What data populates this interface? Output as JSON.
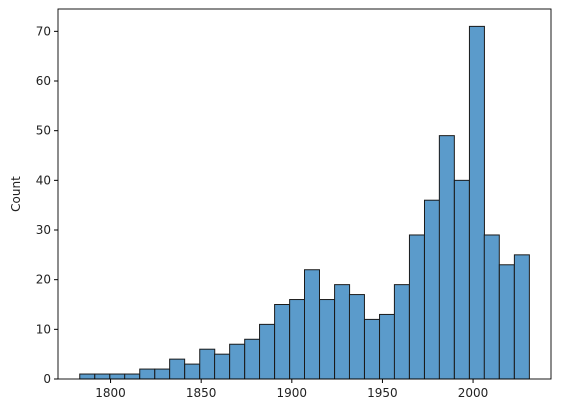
{
  "chart_data": {
    "type": "bar",
    "bin_width": 8.27,
    "bins": [
      {
        "x0": 1783.0,
        "count": 1
      },
      {
        "x0": 1791.3,
        "count": 1
      },
      {
        "x0": 1799.6,
        "count": 1
      },
      {
        "x0": 1807.8,
        "count": 1
      },
      {
        "x0": 1816.1,
        "count": 2
      },
      {
        "x0": 1824.4,
        "count": 2
      },
      {
        "x0": 1832.6,
        "count": 4
      },
      {
        "x0": 1840.9,
        "count": 3
      },
      {
        "x0": 1849.2,
        "count": 6
      },
      {
        "x0": 1857.4,
        "count": 5
      },
      {
        "x0": 1865.7,
        "count": 7
      },
      {
        "x0": 1874.0,
        "count": 8
      },
      {
        "x0": 1882.2,
        "count": 11
      },
      {
        "x0": 1890.5,
        "count": 15
      },
      {
        "x0": 1898.8,
        "count": 16
      },
      {
        "x0": 1907.0,
        "count": 22
      },
      {
        "x0": 1915.3,
        "count": 16
      },
      {
        "x0": 1923.6,
        "count": 19
      },
      {
        "x0": 1931.8,
        "count": 17
      },
      {
        "x0": 1940.1,
        "count": 12
      },
      {
        "x0": 1948.4,
        "count": 13
      },
      {
        "x0": 1956.6,
        "count": 19
      },
      {
        "x0": 1964.9,
        "count": 29
      },
      {
        "x0": 1973.2,
        "count": 36
      },
      {
        "x0": 1981.4,
        "count": 49
      },
      {
        "x0": 1989.7,
        "count": 40
      },
      {
        "x0": 1998.0,
        "count": 71
      },
      {
        "x0": 2006.2,
        "count": 29
      },
      {
        "x0": 2014.5,
        "count": 23
      },
      {
        "x0": 2022.8,
        "count": 25
      }
    ],
    "xlabel": "",
    "ylabel": "Count",
    "xlim": [
      1771,
      2043
    ],
    "ylim": [
      0,
      74.5
    ],
    "xticks": [
      1800,
      1850,
      1900,
      1950,
      2000
    ],
    "xtick_labels": [
      "1800",
      "1850",
      "1900",
      "1950",
      "2000"
    ],
    "yticks": [
      0,
      10,
      20,
      30,
      40,
      50,
      60,
      70
    ],
    "ytick_labels": [
      "0",
      "10",
      "20",
      "30",
      "40",
      "50",
      "60",
      "70"
    ],
    "grid": false,
    "colors": {
      "bar_fill": "#5b9bcb",
      "bar_edge": "#1a1a1a",
      "axis": "#000000"
    }
  }
}
